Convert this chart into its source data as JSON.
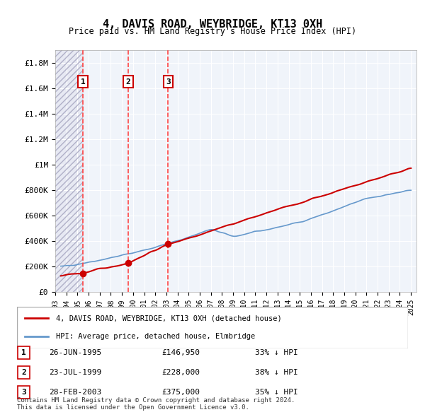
{
  "title": "4, DAVIS ROAD, WEYBRIDGE, KT13 0XH",
  "subtitle": "Price paid vs. HM Land Registry's House Price Index (HPI)",
  "footnote": "Contains HM Land Registry data © Crown copyright and database right 2024.\nThis data is licensed under the Open Government Licence v3.0.",
  "legend_label_red": "4, DAVIS ROAD, WEYBRIDGE, KT13 0XH (detached house)",
  "legend_label_blue": "HPI: Average price, detached house, Elmbridge",
  "transactions": [
    {
      "num": 1,
      "date": "26-JUN-1995",
      "price": 146950,
      "hpi_pct": "33% ↓ HPI",
      "year": 1995.49
    },
    {
      "num": 2,
      "date": "23-JUL-1999",
      "price": 228000,
      "hpi_pct": "38% ↓ HPI",
      "year": 1999.56
    },
    {
      "num": 3,
      "date": "28-FEB-2003",
      "price": 375000,
      "hpi_pct": "35% ↓ HPI",
      "year": 2003.16
    }
  ],
  "hpi_color": "#6699cc",
  "price_color": "#cc0000",
  "dashed_color": "#ff4444",
  "marker_color": "#cc0000",
  "background_hatch_color": "#d8d8e8",
  "ylim": [
    0,
    1900000
  ],
  "xlim_start": 1993,
  "xlim_end": 2025.5,
  "yticks": [
    0,
    200000,
    400000,
    600000,
    800000,
    1000000,
    1200000,
    1400000,
    1600000,
    1800000
  ],
  "ytick_labels": [
    "£0",
    "£200K",
    "£400K",
    "£600K",
    "£800K",
    "£1M",
    "£1.2M",
    "£1.4M",
    "£1.6M",
    "£1.8M"
  ],
  "xticks": [
    1993,
    1994,
    1995,
    1996,
    1997,
    1998,
    1999,
    2000,
    2001,
    2002,
    2003,
    2004,
    2005,
    2006,
    2007,
    2008,
    2009,
    2010,
    2011,
    2012,
    2013,
    2014,
    2015,
    2016,
    2017,
    2018,
    2019,
    2020,
    2021,
    2022,
    2023,
    2024,
    2025
  ]
}
